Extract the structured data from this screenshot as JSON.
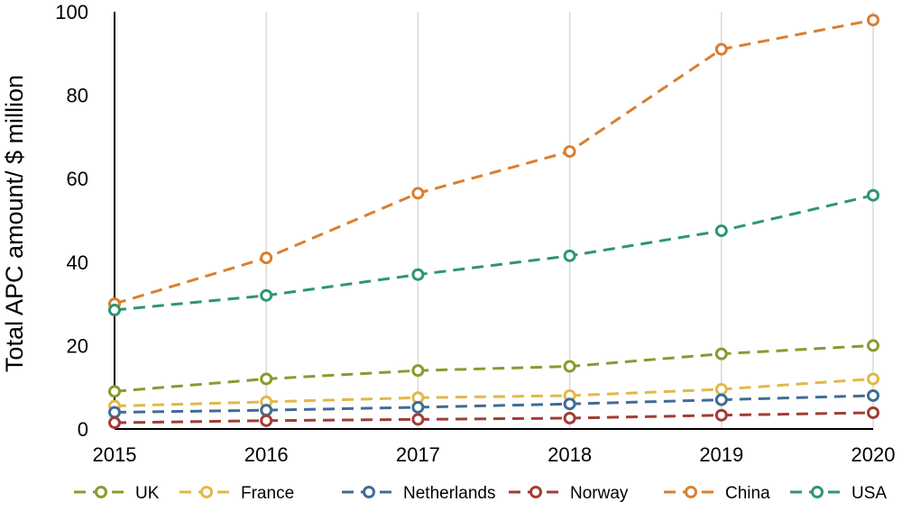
{
  "chart_data": {
    "type": "line",
    "title": "",
    "xlabel": "",
    "ylabel": "Total APC amount/ $ million",
    "x": [
      "2015",
      "2016",
      "2017",
      "2018",
      "2019",
      "2020"
    ],
    "ylim": [
      0,
      100
    ],
    "yticks": [
      "0",
      "20",
      "40",
      "60",
      "80",
      "100"
    ],
    "grid": "vertical",
    "legend_position": "bottom",
    "series": [
      {
        "name": "UK",
        "color": "#8a9a2e",
        "values": [
          9.0,
          12.0,
          14.0,
          15.0,
          18.0,
          20.0
        ]
      },
      {
        "name": "France",
        "color": "#e3b84a",
        "values": [
          5.5,
          6.5,
          7.5,
          8.0,
          9.5,
          12.0
        ]
      },
      {
        "name": "Netherlands",
        "color": "#3f6c95",
        "values": [
          4.0,
          4.5,
          5.2,
          6.0,
          7.0,
          8.0
        ]
      },
      {
        "name": "Norway",
        "color": "#a13d35",
        "values": [
          1.5,
          2.0,
          2.3,
          2.6,
          3.3,
          3.9
        ]
      },
      {
        "name": "China",
        "color": "#d97f2f",
        "values": [
          30.0,
          41.0,
          56.5,
          66.5,
          91.0,
          98.0
        ]
      },
      {
        "name": "USA",
        "color": "#2e9576",
        "values": [
          28.5,
          32.0,
          37.0,
          41.5,
          47.5,
          56.0
        ]
      }
    ]
  }
}
